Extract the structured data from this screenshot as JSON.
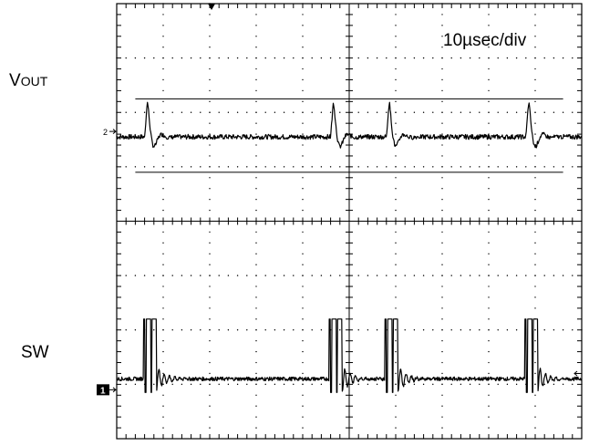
{
  "labels": {
    "ch_upper_main": "V",
    "ch_upper_sub": "OUT",
    "ch_lower": "SW",
    "timebase": "10µsec/div",
    "marker_ch2": "2",
    "marker_ch1": "1"
  },
  "colors": {
    "trace": "#000000",
    "background": "#ffffff",
    "grid": "#000000"
  },
  "chart_data": {
    "type": "line",
    "title": "",
    "xlabel": "",
    "ylabel": "",
    "grid": true,
    "divisions": {
      "x": 10,
      "y": 8
    },
    "timebase": "10µsec/div",
    "xlim": [
      0,
      100
    ],
    "x_unit": "µs",
    "ylim": [
      -4,
      4
    ],
    "switch_events_us": [
      6,
      46,
      58,
      88
    ],
    "series": [
      {
        "name": "VOUT",
        "baseline_div": 1.55,
        "ground_marker_div": 1.65,
        "window_upper_div": 2.25,
        "window_lower_div": 0.9,
        "transient_peak_div": 2.2,
        "transient_trough_div": 0.95
      },
      {
        "name": "SW",
        "baseline_div": -2.9,
        "ground_marker_div": -3.1,
        "pulse_high_div": -1.8,
        "pulse_low_div": -3.15,
        "pulse_width_us": 2.5
      }
    ]
  }
}
